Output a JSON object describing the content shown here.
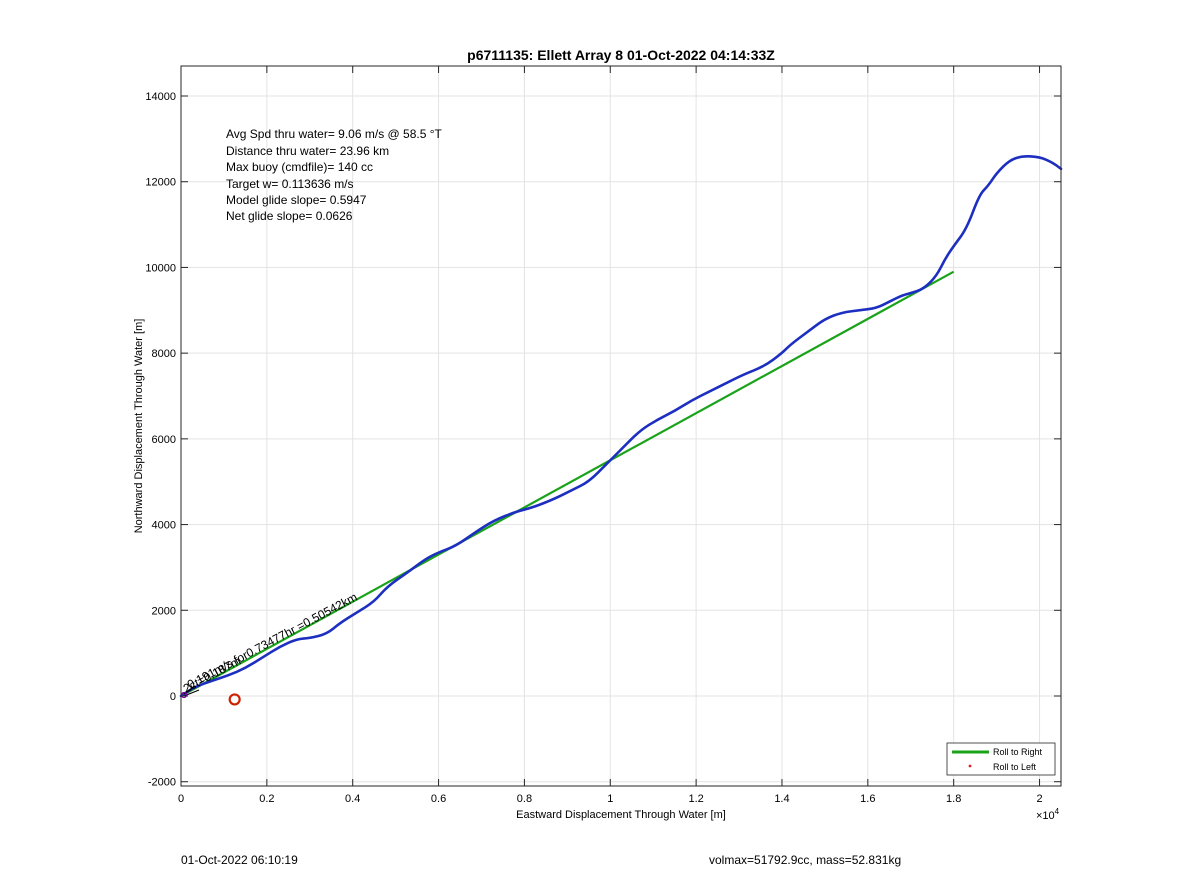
{
  "chart_data": {
    "type": "line",
    "title": "p6711135: Ellett Array 8 01-Oct-2022 04:14:33Z",
    "xlabel": "Eastward Displacement Through Water [m]",
    "ylabel": "Northward Displacement Through Water [m]",
    "xlim": [
      0,
      20500
    ],
    "ylim": [
      -2100,
      14700
    ],
    "x_ticks": [
      0,
      2000,
      4000,
      6000,
      8000,
      10000,
      12000,
      14000,
      16000,
      18000,
      20000
    ],
    "x_tick_labels": [
      "0",
      "0.2",
      "0.4",
      "0.6",
      "0.8",
      "1",
      "1.2",
      "1.4",
      "1.6",
      "1.8",
      "2"
    ],
    "x_exponent_base": "×10",
    "x_exponent_power": "4",
    "y_ticks": [
      -2000,
      0,
      2000,
      4000,
      6000,
      8000,
      10000,
      12000,
      14000
    ],
    "y_tick_labels": [
      "-2000",
      "0",
      "2000",
      "4000",
      "6000",
      "8000",
      "10000",
      "12000",
      "14000"
    ],
    "grid": true,
    "legend_position": "bottom-right",
    "colors": {
      "roll_to_right": "#1aa31a",
      "roll_to_left": "#dd2222",
      "track": "#1c2fc0",
      "marker": "#cc2200"
    },
    "series": [
      {
        "name": "Roll to Right",
        "x": [
          0,
          18000
        ],
        "y": [
          0,
          9900
        ]
      },
      {
        "name": "Roll to Left",
        "x": [],
        "y": []
      },
      {
        "x": [
          0,
          300,
          700,
          1100,
          1500,
          1900,
          2300,
          2700,
          3000,
          3400,
          3700,
          4100,
          4500,
          4800,
          5300,
          5700,
          6000,
          6400,
          6900,
          7300,
          7800,
          8200,
          8700,
          9100,
          9500,
          9900,
          10300,
          10700,
          11100,
          11500,
          11900,
          12300,
          12700,
          13100,
          13600,
          14000,
          14200,
          14600,
          15000,
          15400,
          15800,
          16200,
          16500,
          16800,
          17000,
          17300,
          17600,
          17800,
          18000,
          18300,
          18600,
          18800,
          19000,
          19300,
          19600,
          20000,
          20300,
          20500
        ],
        "y": [
          0,
          200,
          350,
          480,
          650,
          900,
          1150,
          1330,
          1350,
          1450,
          1700,
          1950,
          2200,
          2550,
          2900,
          3200,
          3350,
          3500,
          3850,
          4100,
          4300,
          4400,
          4600,
          4800,
          5000,
          5400,
          5800,
          6200,
          6450,
          6650,
          6900,
          7100,
          7300,
          7500,
          7700,
          8000,
          8200,
          8500,
          8800,
          8950,
          9000,
          9050,
          9200,
          9350,
          9400,
          9500,
          9800,
          10200,
          10500,
          10900,
          11700,
          11900,
          12200,
          12500,
          12600,
          12580,
          12450,
          12300
        ]
      }
    ],
    "start_marker": {
      "x": 1250,
      "y": -80
    },
    "annotations": {
      "stats": [
        "Avg Spd thru water=  9.06 m/s @  58.5 °T",
        "Distance thru water= 23.96 km",
        "Max buoy (cmdfile)= 140 cc",
        "Target w= 0.113636 m/s",
        "Model glide slope= 0.5947",
        "Net glide slope= 0.0626"
      ],
      "rotated_label": "0.191m/s for0.73477hr =0.50542km",
      "overlap_label": "2ct=0.187m"
    }
  },
  "footer": {
    "left": "01-Oct-2022 06:10:19",
    "right": "volmax=51792.9cc, mass=52.831kg"
  }
}
